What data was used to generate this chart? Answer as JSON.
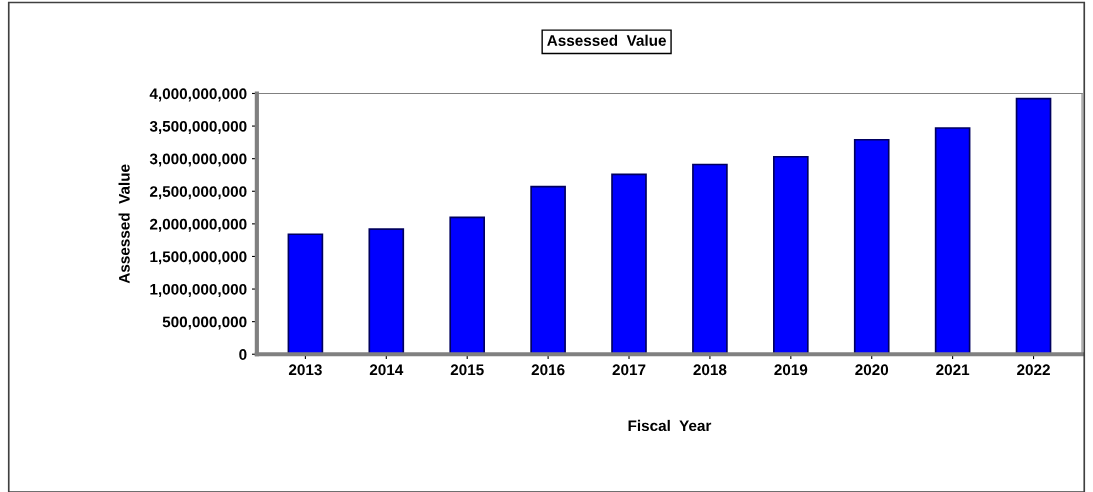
{
  "chart_data": {
    "type": "bar",
    "title": "Assessed  Value",
    "xlabel": "Fiscal  Year",
    "ylabel": "Assessed  Value",
    "categories": [
      "2013",
      "2014",
      "2015",
      "2016",
      "2017",
      "2018",
      "2019",
      "2020",
      "2021",
      "2022"
    ],
    "values": [
      1840000000,
      1920000000,
      2100000000,
      2570000000,
      2760000000,
      2910000000,
      3030000000,
      3290000000,
      3470000000,
      3920000000
    ],
    "color": "#0000ff",
    "ylim": [
      0,
      4000000000
    ],
    "yticks": [
      {
        "value": 0,
        "label": "0"
      },
      {
        "value": 500000000,
        "label": "500,000,000"
      },
      {
        "value": 1000000000,
        "label": "1,000,000,000"
      },
      {
        "value": 1500000000,
        "label": "1,500,000,000"
      },
      {
        "value": 2000000000,
        "label": "2,000,000,000"
      },
      {
        "value": 2500000000,
        "label": "2,500,000,000"
      },
      {
        "value": 3000000000,
        "label": "3,000,000,000"
      },
      {
        "value": 3500000000,
        "label": "3,500,000,000"
      },
      {
        "value": 4000000000,
        "label": "4,000,000,000"
      }
    ],
    "grid": false,
    "legend": false
  }
}
